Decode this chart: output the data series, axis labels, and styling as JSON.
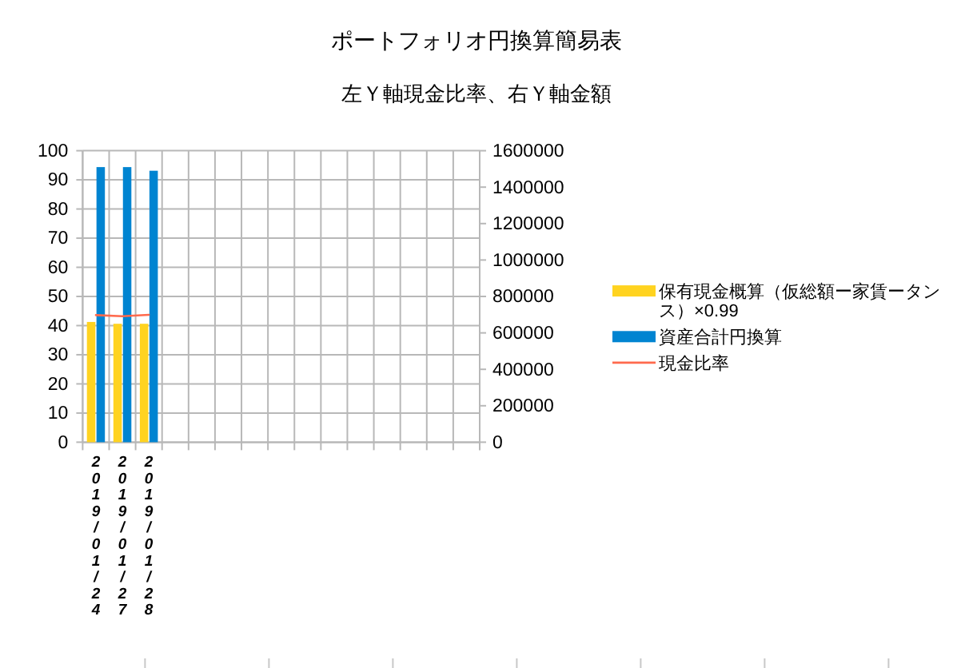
{
  "chart_data": {
    "type": "bar",
    "title": "ポートフォリオ円換算簡易表",
    "subtitle": "左Ｙ軸現金比率、右Ｙ軸金額",
    "categories": [
      "2019/01/24",
      "2019/01/27",
      "2019/01/28",
      null,
      null,
      null,
      null,
      null,
      null,
      null,
      null,
      null,
      null,
      null,
      null
    ],
    "series": [
      {
        "name": "保有現金概算（仮総額ー家賃ータンス）×0.99",
        "color": "#ffd320",
        "axis": "y2",
        "values": [
          660000,
          650000,
          650000,
          null,
          null,
          null,
          null,
          null,
          null,
          null,
          null,
          null,
          null,
          null,
          null
        ]
      },
      {
        "name": "資産合計円換算",
        "color": "#0084d1",
        "axis": "y2",
        "values": [
          1510000,
          1510000,
          1490000,
          null,
          null,
          null,
          null,
          null,
          null,
          null,
          null,
          null,
          null,
          null,
          null
        ]
      },
      {
        "name": "現金比率",
        "type": "line",
        "color": "#ff6a4d",
        "values": [
          43.6,
          43.2,
          43.7,
          null,
          null,
          null,
          null,
          null,
          null,
          null,
          null,
          null,
          null,
          null,
          null
        ]
      }
    ],
    "ylim": [
      0,
      100
    ],
    "yticks": [
      0,
      10,
      20,
      30,
      40,
      50,
      60,
      70,
      80,
      90,
      100
    ],
    "y2lim": [
      0,
      1600000
    ],
    "y2ticks": [
      0,
      200000,
      400000,
      600000,
      800000,
      1000000,
      1200000,
      1400000,
      1600000
    ],
    "grid": true,
    "legend": "right"
  }
}
